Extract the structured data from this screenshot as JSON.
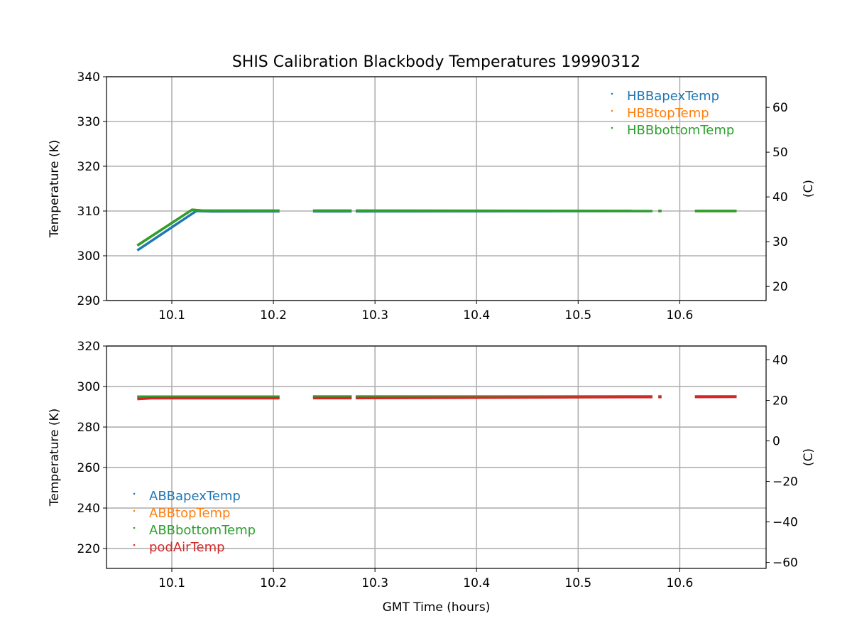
{
  "chart_data": [
    {
      "type": "scatter",
      "title": "SHIS Calibration Blackbody Temperatures 19990312",
      "xlabel": "",
      "ylabel": "Temperature (K)",
      "ylabel_right": "(C)",
      "xlim": [
        10.0357,
        10.685
      ],
      "ylim": [
        290,
        340
      ],
      "ylim_right": [
        16.85,
        66.85
      ],
      "xticks": [
        10.1,
        10.2,
        10.3,
        10.4,
        10.5,
        10.6
      ],
      "xtick_labels": [
        "10.1",
        "10.2",
        "10.3",
        "10.4",
        "10.5",
        "10.6"
      ],
      "yticks": [
        290,
        300,
        310,
        320,
        330,
        340
      ],
      "ytick_labels": [
        "290",
        "300",
        "310",
        "320",
        "330",
        "340"
      ],
      "yticks_right": [
        20,
        30,
        40,
        50,
        60
      ],
      "ytick_labels_right": [
        "20",
        "30",
        "40",
        "50",
        "60"
      ],
      "grid": true,
      "legend_position": "top-right",
      "gaps": [
        [
          10.206,
          10.239
        ],
        [
          10.277,
          10.281
        ],
        [
          10.573,
          10.579
        ],
        [
          10.582,
          10.615
        ]
      ],
      "x_extent": [
        10.066,
        10.656
      ],
      "series": [
        {
          "name": "HBBapexTemp",
          "color": "#1f77b4",
          "x": [
            10.066,
            10.124,
            10.14,
            10.656
          ],
          "y": [
            301.2,
            310.0,
            309.9,
            310.0
          ]
        },
        {
          "name": "HBBtopTemp",
          "color": "#ff7f0e",
          "x": [
            10.066,
            10.12,
            10.13,
            10.656
          ],
          "y": [
            302.3,
            310.3,
            310.1,
            310.0
          ]
        },
        {
          "name": "HBBbottomTemp",
          "color": "#2ca02c",
          "x": [
            10.066,
            10.12,
            10.13,
            10.656
          ],
          "y": [
            302.3,
            310.3,
            310.1,
            310.0
          ]
        }
      ]
    },
    {
      "type": "scatter",
      "title": "",
      "xlabel": "GMT Time (hours)",
      "ylabel": "Temperature (K)",
      "ylabel_right": "(C)",
      "xlim": [
        10.0357,
        10.685
      ],
      "ylim": [
        210.2,
        320
      ],
      "ylim_right": [
        -62.95,
        46.85
      ],
      "xticks": [
        10.1,
        10.2,
        10.3,
        10.4,
        10.5,
        10.6
      ],
      "xtick_labels": [
        "10.1",
        "10.2",
        "10.3",
        "10.4",
        "10.5",
        "10.6"
      ],
      "yticks": [
        220,
        240,
        260,
        280,
        300,
        320
      ],
      "ytick_labels": [
        "220",
        "240",
        "260",
        "280",
        "300",
        "320"
      ],
      "yticks_right": [
        -60,
        -40,
        -20,
        0,
        20,
        40
      ],
      "ytick_labels_right": [
        "−60",
        "−40",
        "−20",
        "0",
        "20",
        "40"
      ],
      "grid": true,
      "legend_position": "lower-left",
      "gaps": [
        [
          10.206,
          10.239
        ],
        [
          10.277,
          10.281
        ],
        [
          10.573,
          10.579
        ],
        [
          10.582,
          10.615
        ]
      ],
      "x_extent": [
        10.066,
        10.656
      ],
      "series": [
        {
          "name": "ABBapexTemp",
          "color": "#1f77b4",
          "x": [
            10.066,
            10.656
          ],
          "y": [
            294.9,
            295.0
          ]
        },
        {
          "name": "ABBtopTemp",
          "color": "#ff7f0e",
          "x": [
            10.066,
            10.656
          ],
          "y": [
            295.0,
            295.1
          ]
        },
        {
          "name": "ABBbottomTemp",
          "color": "#2ca02c",
          "x": [
            10.066,
            10.656
          ],
          "y": [
            295.0,
            295.1
          ]
        },
        {
          "name": "podAirTemp",
          "color": "#d62728",
          "x": [
            10.066,
            10.08,
            10.2,
            10.3,
            10.5,
            10.656
          ],
          "y": [
            293.8,
            294.2,
            294.2,
            294.3,
            294.7,
            294.9
          ]
        }
      ]
    }
  ]
}
